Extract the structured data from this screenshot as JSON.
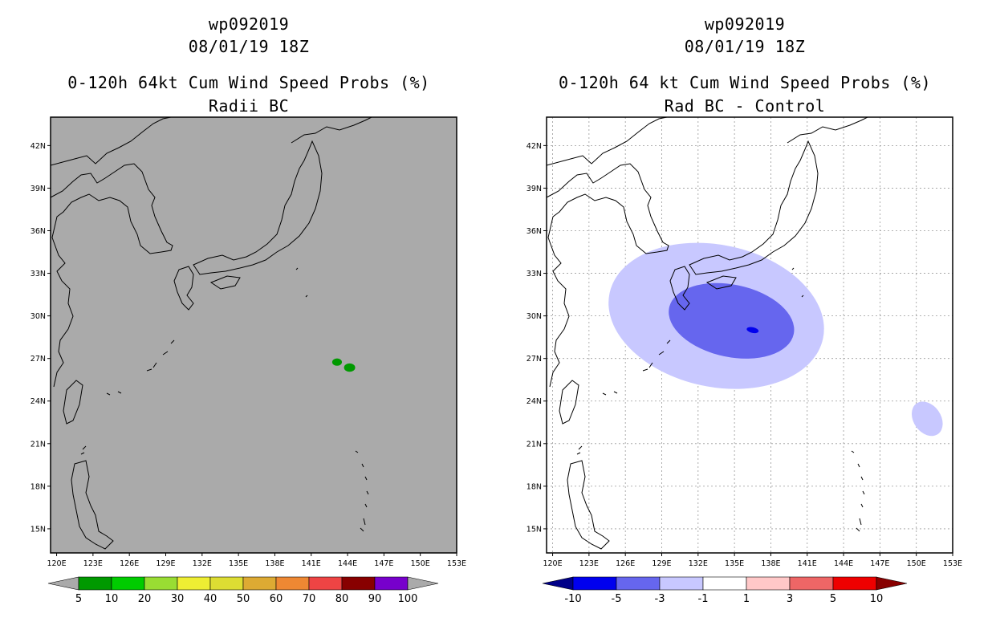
{
  "left": {
    "title1": "wp092019",
    "title2": "08/01/19 18Z",
    "title3": "0-120h 64kt Cum Wind Speed Probs (%)",
    "title4": "Radii BC",
    "background_color": "#aaaaaa",
    "colorbar": {
      "labels": [
        "5",
        "10",
        "20",
        "30",
        "40",
        "50",
        "60",
        "70",
        "80",
        "90",
        "100"
      ],
      "colors": [
        "#009900",
        "#00cc00",
        "#99dd33",
        "#eeee33",
        "#dddd33",
        "#ddaa33",
        "#ee8833",
        "#ee4444",
        "#880000",
        "#7700cc"
      ],
      "end_color": "#aaaaaa"
    }
  },
  "right": {
    "title1": "wp092019",
    "title2": "08/01/19 18Z",
    "title3": "0-120h 64 kt Cum Wind Speed Probs (%)",
    "title4": "Rad BC - Control",
    "background_color": "#ffffff",
    "colorbar": {
      "labels": [
        "-10",
        "-5",
        "-3",
        "-1",
        "1",
        "3",
        "5",
        "10"
      ],
      "colors": [
        "#0000ee",
        "#6666ee",
        "#c8c8ff",
        "#ffffff",
        "#ffc8c8",
        "#ee6666",
        "#ee0000"
      ],
      "end_left": "#000088",
      "end_right": "#880000"
    }
  },
  "chart_data": [
    {
      "type": "heatmap",
      "title": "0-120h 64kt Cum Wind Speed Probs (%) — Radii BC",
      "storm": "wp092019",
      "valid": "08/01/19 18Z",
      "x_ticks": [
        "120E",
        "123E",
        "126E",
        "129E",
        "132E",
        "135E",
        "138E",
        "141E",
        "144E",
        "147E",
        "150E",
        "153E"
      ],
      "y_ticks": [
        "15N",
        "18N",
        "21N",
        "24N",
        "27N",
        "30N",
        "33N",
        "36N",
        "39N",
        "42N"
      ],
      "lon_range": [
        119.5,
        153
      ],
      "lat_range": [
        13.3,
        44
      ],
      "grid": false,
      "regions": [
        {
          "level": "5-10%",
          "color": "#009900",
          "lon": [
            142.5,
            144.8
          ],
          "lat": [
            25.9,
            27.2
          ]
        }
      ]
    },
    {
      "type": "heatmap",
      "title": "0-120h 64 kt Cum Wind Speed Probs (%) — Rad BC - Control",
      "storm": "wp092019",
      "valid": "08/01/19 18Z",
      "x_ticks": [
        "120E",
        "123E",
        "126E",
        "129E",
        "132E",
        "135E",
        "138E",
        "141E",
        "144E",
        "147E",
        "150E",
        "153E"
      ],
      "y_ticks": [
        "15N",
        "18N",
        "21N",
        "24N",
        "27N",
        "30N",
        "33N",
        "36N",
        "39N",
        "42N"
      ],
      "lon_range": [
        119.5,
        153
      ],
      "lat_range": [
        13.3,
        44
      ],
      "grid": true,
      "regions": [
        {
          "level": "-3 to -1",
          "color": "#c8c8ff",
          "lon": [
            124.5,
            142.5
          ],
          "lat": [
            25,
            35
          ]
        },
        {
          "level": "-3 to -1",
          "color": "#c8c8ff",
          "lon": [
            149.5,
            152.3
          ],
          "lat": [
            21,
            24.5
          ]
        },
        {
          "level": "-5 to -3",
          "color": "#6666ee",
          "lon": [
            129.5,
            140
          ],
          "lat": [
            27.1,
            32.2
          ]
        },
        {
          "level": "-10 to -5",
          "color": "#0000ee",
          "lon": [
            136,
            137
          ],
          "lat": [
            28.8,
            29.2
          ]
        }
      ]
    }
  ]
}
